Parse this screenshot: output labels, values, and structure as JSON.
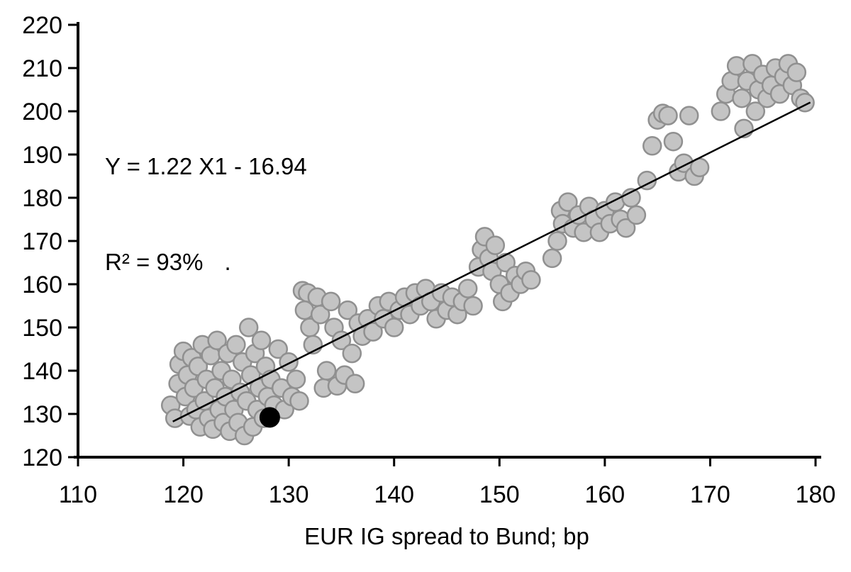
{
  "chart_data": {
    "type": "scatter",
    "title": "",
    "xlabel": "EUR IG spread to Bund; bp",
    "ylabel": "",
    "xlim": [
      110,
      180
    ],
    "ylim": [
      120,
      220
    ],
    "x_ticks": [
      110,
      120,
      130,
      140,
      150,
      160,
      170,
      180
    ],
    "y_ticks": [
      120,
      130,
      140,
      150,
      160,
      170,
      180,
      190,
      200,
      210,
      220
    ],
    "grid": false,
    "legend": "none",
    "annotation": {
      "line1": "Y = 1.22 X1 - 16.94",
      "line2": "R² = 93%",
      "dot": "."
    },
    "regression": {
      "slope": 1.22,
      "intercept": -16.94,
      "x_start": 119,
      "x_end": 179.5,
      "color": "#000000"
    },
    "series": [
      {
        "name": "observations",
        "fill": "#c4c4c4",
        "stroke": "#909090",
        "points": [
          [
            118.8,
            132
          ],
          [
            119.2,
            129
          ],
          [
            119.5,
            137
          ],
          [
            119.6,
            141.5
          ],
          [
            120,
            144.5
          ],
          [
            120.2,
            134
          ],
          [
            120.4,
            139
          ],
          [
            120.6,
            129.5
          ],
          [
            120.8,
            143
          ],
          [
            121,
            136
          ],
          [
            121.2,
            131
          ],
          [
            121.4,
            141
          ],
          [
            121.6,
            127
          ],
          [
            121.8,
            146
          ],
          [
            122,
            133
          ],
          [
            122.2,
            138
          ],
          [
            122.4,
            129
          ],
          [
            122.6,
            143.5
          ],
          [
            122.8,
            126.5
          ],
          [
            123,
            136
          ],
          [
            123.2,
            147
          ],
          [
            123.4,
            131
          ],
          [
            123.6,
            140
          ],
          [
            123.8,
            128
          ],
          [
            124,
            134
          ],
          [
            124.2,
            144
          ],
          [
            124.4,
            126
          ],
          [
            124.6,
            138
          ],
          [
            124.8,
            131
          ],
          [
            125,
            146
          ],
          [
            125.2,
            128
          ],
          [
            125.4,
            135
          ],
          [
            125.6,
            142
          ],
          [
            125.8,
            125
          ],
          [
            126,
            133
          ],
          [
            126.2,
            150
          ],
          [
            126.4,
            139
          ],
          [
            126.6,
            127
          ],
          [
            126.8,
            144
          ],
          [
            127,
            131
          ],
          [
            127.2,
            136
          ],
          [
            127.4,
            147
          ],
          [
            127.6,
            129
          ],
          [
            127.8,
            141
          ],
          [
            128,
            134
          ],
          [
            128.3,
            138
          ],
          [
            128.6,
            132
          ],
          [
            129,
            145
          ],
          [
            129.3,
            136
          ],
          [
            129.6,
            131
          ],
          [
            130,
            142
          ],
          [
            130.3,
            134
          ],
          [
            130.7,
            138
          ],
          [
            131,
            133
          ],
          [
            131.3,
            158.5
          ],
          [
            131.8,
            158
          ],
          [
            131.5,
            154
          ],
          [
            132,
            150
          ],
          [
            132.3,
            146
          ],
          [
            132.7,
            157
          ],
          [
            133,
            153
          ],
          [
            133.3,
            136
          ],
          [
            133.6,
            140
          ],
          [
            134,
            156
          ],
          [
            134.3,
            150
          ],
          [
            134.6,
            136.5
          ],
          [
            135,
            147
          ],
          [
            135.3,
            139
          ],
          [
            135.6,
            154
          ],
          [
            136,
            144
          ],
          [
            136.3,
            137
          ],
          [
            136.6,
            151
          ],
          [
            137,
            148
          ],
          [
            137.5,
            152
          ],
          [
            138,
            149
          ],
          [
            138.5,
            155
          ],
          [
            139,
            152
          ],
          [
            139.5,
            156
          ],
          [
            140,
            150
          ],
          [
            140.5,
            154
          ],
          [
            141,
            157
          ],
          [
            141.5,
            153
          ],
          [
            142,
            158
          ],
          [
            142.5,
            155
          ],
          [
            143,
            159
          ],
          [
            143.5,
            156
          ],
          [
            144,
            152
          ],
          [
            144.5,
            158
          ],
          [
            145,
            154
          ],
          [
            145.5,
            157
          ],
          [
            146,
            153
          ],
          [
            146.5,
            156
          ],
          [
            147,
            159
          ],
          [
            147.5,
            155
          ],
          [
            148,
            164
          ],
          [
            148.3,
            168
          ],
          [
            148.6,
            171
          ],
          [
            149,
            166
          ],
          [
            149.3,
            163
          ],
          [
            149.6,
            169
          ],
          [
            150,
            160
          ],
          [
            150.3,
            156
          ],
          [
            150.6,
            165
          ],
          [
            151,
            158
          ],
          [
            151.5,
            162
          ],
          [
            152,
            160
          ],
          [
            152.5,
            163
          ],
          [
            153,
            161
          ],
          [
            155,
            166
          ],
          [
            155.5,
            170
          ],
          [
            155.8,
            177
          ],
          [
            156,
            174
          ],
          [
            156.5,
            179
          ],
          [
            157,
            173
          ],
          [
            157.5,
            176
          ],
          [
            158,
            172
          ],
          [
            158.5,
            178
          ],
          [
            159,
            175
          ],
          [
            159.5,
            172
          ],
          [
            160,
            177
          ],
          [
            160.5,
            174
          ],
          [
            161,
            179
          ],
          [
            161.5,
            175
          ],
          [
            162,
            173
          ],
          [
            162.5,
            180
          ],
          [
            163,
            176
          ],
          [
            164,
            184
          ],
          [
            164.5,
            192
          ],
          [
            165,
            198
          ],
          [
            165.5,
            199.5
          ],
          [
            166,
            199
          ],
          [
            166.5,
            193
          ],
          [
            167,
            186
          ],
          [
            167.5,
            188
          ],
          [
            168,
            199
          ],
          [
            168.5,
            185
          ],
          [
            169,
            187
          ],
          [
            171,
            200
          ],
          [
            171.5,
            204
          ],
          [
            172,
            207
          ],
          [
            172.5,
            210.5
          ],
          [
            173,
            203
          ],
          [
            173.2,
            196
          ],
          [
            173.5,
            207
          ],
          [
            174,
            211
          ],
          [
            174.3,
            200
          ],
          [
            174.6,
            205
          ],
          [
            175,
            208.5
          ],
          [
            175.4,
            203
          ],
          [
            175.8,
            206
          ],
          [
            176.2,
            210
          ],
          [
            176.6,
            204
          ],
          [
            177,
            208
          ],
          [
            177.4,
            211
          ],
          [
            177.8,
            206
          ],
          [
            178.2,
            209
          ],
          [
            178.6,
            203
          ],
          [
            179,
            202
          ]
        ]
      },
      {
        "name": "latest-point",
        "fill": "#000000",
        "stroke": "#000000",
        "points": [
          [
            128.2,
            129.2
          ]
        ]
      }
    ]
  },
  "colors": {
    "axis": "#000000",
    "text": "#000000",
    "background": "#ffffff"
  }
}
